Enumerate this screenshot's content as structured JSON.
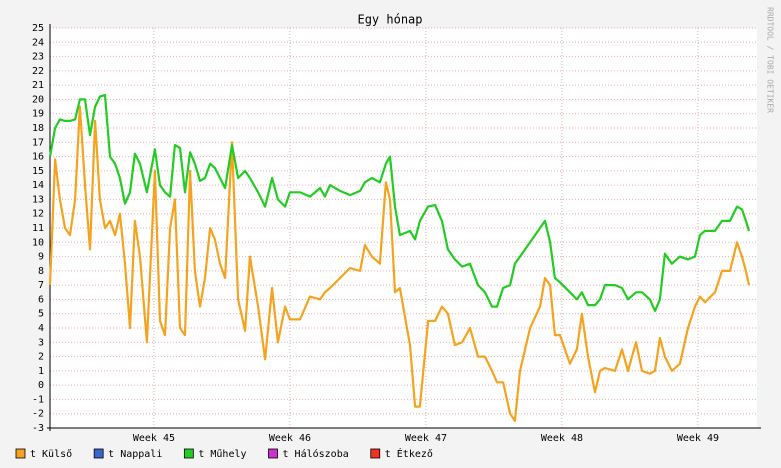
{
  "chart_data": {
    "type": "line",
    "title": "Egy hónap",
    "watermark": "RRDTOOL / TOBI OETIKER",
    "x": [
      0,
      0.26,
      0.51,
      0.77,
      1.03,
      1.29,
      1.54,
      1.8,
      2.06,
      2.32,
      2.57,
      2.83,
      3.09,
      3.35,
      3.6,
      3.86,
      4.12,
      4.37,
      4.63,
      4.99,
      5.4,
      5.66,
      5.92,
      6.18,
      6.43,
      6.69,
      6.95,
      7.21,
      7.46,
      7.72,
      7.98,
      8.24,
      8.49,
      8.75,
      9.01,
      9.37,
      9.68,
      10.04,
      10.29,
      10.71,
      11.07,
      11.43,
      11.73,
      12.1,
      12.35,
      12.87,
      13.38,
      13.9,
      14.15,
      14.41,
      14.93,
      15.44,
      15.96,
      16.21,
      16.57,
      16.98,
      17.29,
      17.5,
      17.76,
      18.01,
      18.53,
      18.79,
      19.04,
      19.46,
      19.82,
      20.17,
      20.48,
      20.84,
      21.21,
      21.62,
      22.03,
      22.39,
      22.75,
      23.01,
      23.32,
      23.68,
      23.93,
      24.19,
      24.71,
      25.22,
      25.48,
      25.74,
      25.99,
      26.25,
      26.76,
      27.12,
      27.38,
      27.69,
      28.05,
      28.31,
      28.56,
      29.08,
      29.44,
      29.75,
      30.16,
      30.47,
      30.88,
      31.14,
      31.39,
      31.65,
      32.01,
      32.42,
      32.84,
      33.2,
      33.45,
      33.71,
      34.23,
      34.59,
      35,
      35.36,
      35.62,
      35.82,
      35.98
    ],
    "series": [
      {
        "name": "t Külső",
        "color": "#f5a31e",
        "values": [
          7,
          15.8,
          13,
          11,
          10.5,
          13,
          19.5,
          14,
          9.5,
          18.5,
          13,
          11,
          11.5,
          10.5,
          12,
          8.5,
          4,
          11.5,
          9,
          3,
          15,
          4.5,
          3.5,
          11,
          13,
          4,
          3.5,
          15,
          8,
          5.5,
          7.5,
          11,
          10.2,
          8.5,
          7.5,
          17,
          6,
          3.8,
          9,
          5.5,
          1.8,
          6.8,
          3,
          5.5,
          4.6,
          4.6,
          6.2,
          6,
          6.5,
          6.8,
          7.5,
          8.2,
          8,
          9.8,
          9,
          8.5,
          14.2,
          13,
          6.5,
          6.8,
          2.8,
          -1.5,
          -1.5,
          4.5,
          4.5,
          5.5,
          5,
          2.8,
          3,
          4,
          2,
          2,
          1,
          0.2,
          0.2,
          -2,
          -2.5,
          1,
          4,
          5.5,
          7.5,
          7,
          3.5,
          3.5,
          1.5,
          2.5,
          5,
          2,
          -0.5,
          1,
          1.2,
          1,
          2.5,
          1,
          3,
          1,
          0.8,
          1,
          3.3,
          2,
          1,
          1.5,
          4,
          5.5,
          6.2,
          5.8,
          6.5,
          8,
          8,
          10,
          9,
          8,
          7
        ]
      },
      {
        "name": "t Nappali",
        "color": "#3a66cc"
      },
      {
        "name": "t Műhely",
        "color": "#22cc22",
        "values": [
          16,
          18,
          18.6,
          18.5,
          18.5,
          18.6,
          20,
          20,
          17.5,
          19.5,
          20.2,
          20.3,
          16,
          15.5,
          14.5,
          12.7,
          13.5,
          16.2,
          15.5,
          13.5,
          16.5,
          14,
          13.5,
          13.2,
          16.8,
          16.6,
          13.5,
          16.3,
          15.5,
          14.3,
          14.5,
          15.5,
          15.2,
          14.5,
          13.8,
          16.8,
          14.5,
          15,
          14.5,
          13.5,
          12.5,
          14.5,
          13,
          12.5,
          13.5,
          13.5,
          13.2,
          13.8,
          13.2,
          14,
          13.6,
          13.3,
          13.6,
          14.2,
          14.5,
          14.2,
          15.5,
          16,
          12.5,
          10.5,
          10.8,
          10.2,
          11.5,
          12.5,
          12.6,
          11.5,
          9.5,
          8.8,
          8.3,
          8.5,
          7,
          6.5,
          5.5,
          5.5,
          6.8,
          7,
          8.5,
          9,
          10,
          11,
          11.5,
          10,
          7.5,
          7.2,
          6.5,
          6,
          6.5,
          5.6,
          5.6,
          6,
          7,
          7,
          6.8,
          6,
          6.5,
          6.5,
          6,
          5.2,
          6,
          9.2,
          8.5,
          9,
          8.8,
          9,
          10.5,
          10.8,
          10.8,
          11.5,
          11.5,
          12.5,
          12.3,
          11.5,
          10.8
        ]
      },
      {
        "name": "t Hálószoba",
        "color": "#cc33cc"
      },
      {
        "name": "t Étkező",
        "color": "#ee3322"
      }
    ],
    "xlim": [
      0,
      36.39
    ],
    "xticks": [
      {
        "value": 5.35,
        "label": "Week 45"
      },
      {
        "value": 12.35,
        "label": "Week 46"
      },
      {
        "value": 19.35,
        "label": "Week 47"
      },
      {
        "value": 26.35,
        "label": "Week 48"
      },
      {
        "value": 33.35,
        "label": "Week 49"
      }
    ],
    "ylim": [
      -3,
      25
    ],
    "yticks": [
      -3,
      -2,
      -1,
      0,
      1,
      2,
      3,
      4,
      5,
      6,
      7,
      8,
      9,
      10,
      11,
      12,
      13,
      14,
      15,
      16,
      17,
      18,
      19,
      20,
      21,
      22,
      23,
      24,
      25
    ],
    "grid": true
  }
}
